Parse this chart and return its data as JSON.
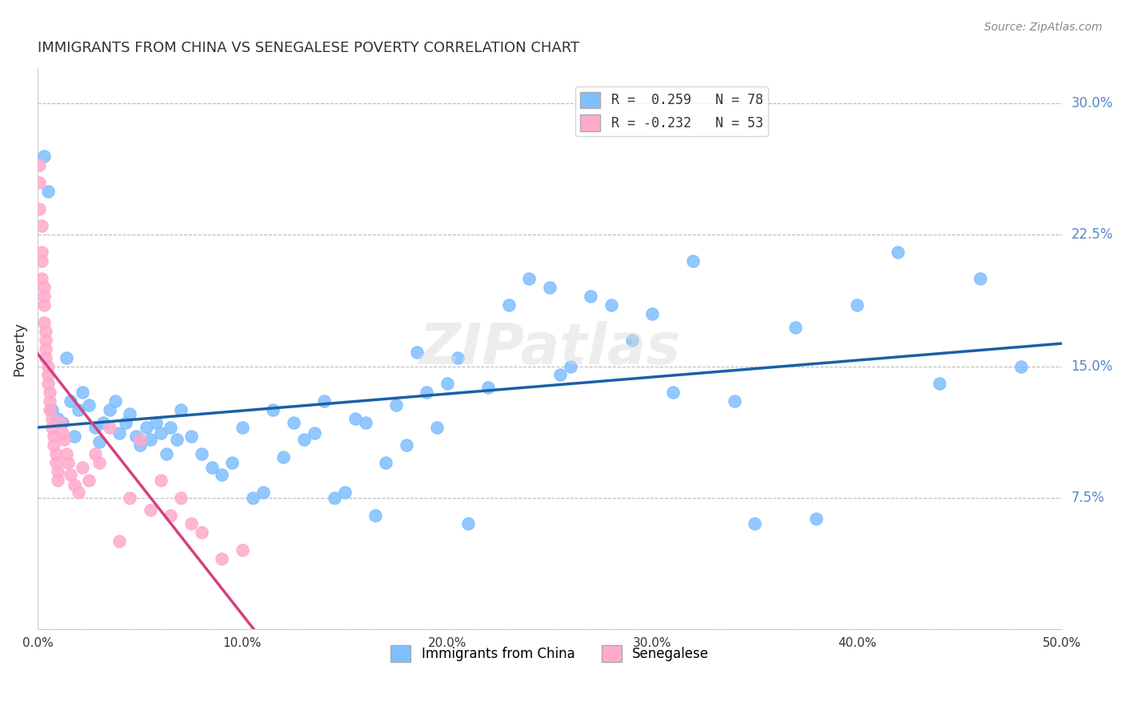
{
  "title": "IMMIGRANTS FROM CHINA VS SENEGALESE POVERTY CORRELATION CHART",
  "source": "Source: ZipAtlas.com",
  "xlabel": "",
  "ylabel": "Poverty",
  "xlim": [
    0.0,
    0.5
  ],
  "ylim": [
    0.0,
    0.32
  ],
  "xticks": [
    0.0,
    0.1,
    0.2,
    0.3,
    0.4,
    0.5
  ],
  "xticklabels": [
    "0.0%",
    "10.0%",
    "20.0%",
    "30.0%",
    "40.0%",
    "50.0%"
  ],
  "yticks": [
    0.0,
    0.075,
    0.15,
    0.225,
    0.3
  ],
  "yticklabels": [
    "",
    "7.5%",
    "15.0%",
    "22.5%",
    "30.0%"
  ],
  "legend_blue_label": "R =  0.259   N = 78",
  "legend_pink_label": "R = -0.232   N = 53",
  "blue_color": "#7fbfff",
  "pink_color": "#ffaacc",
  "blue_line_color": "#1a5fa8",
  "pink_line_color": "#d44080",
  "watermark": "ZIPatlas",
  "blue_scatter_x": [
    0.003,
    0.005,
    0.007,
    0.01,
    0.012,
    0.014,
    0.016,
    0.018,
    0.02,
    0.022,
    0.025,
    0.028,
    0.03,
    0.032,
    0.035,
    0.038,
    0.04,
    0.043,
    0.045,
    0.048,
    0.05,
    0.053,
    0.055,
    0.058,
    0.06,
    0.063,
    0.065,
    0.068,
    0.07,
    0.075,
    0.08,
    0.085,
    0.09,
    0.095,
    0.1,
    0.105,
    0.11,
    0.115,
    0.12,
    0.125,
    0.13,
    0.135,
    0.14,
    0.145,
    0.15,
    0.155,
    0.16,
    0.165,
    0.17,
    0.175,
    0.18,
    0.185,
    0.19,
    0.195,
    0.2,
    0.205,
    0.21,
    0.22,
    0.23,
    0.24,
    0.25,
    0.255,
    0.26,
    0.27,
    0.28,
    0.29,
    0.3,
    0.31,
    0.32,
    0.34,
    0.35,
    0.37,
    0.38,
    0.4,
    0.42,
    0.44,
    0.46,
    0.48
  ],
  "blue_scatter_y": [
    0.27,
    0.25,
    0.125,
    0.12,
    0.118,
    0.155,
    0.13,
    0.11,
    0.125,
    0.135,
    0.128,
    0.115,
    0.107,
    0.118,
    0.125,
    0.13,
    0.112,
    0.118,
    0.123,
    0.11,
    0.105,
    0.115,
    0.108,
    0.118,
    0.112,
    0.1,
    0.115,
    0.108,
    0.125,
    0.11,
    0.1,
    0.092,
    0.088,
    0.095,
    0.115,
    0.075,
    0.078,
    0.125,
    0.098,
    0.118,
    0.108,
    0.112,
    0.13,
    0.075,
    0.078,
    0.12,
    0.118,
    0.065,
    0.095,
    0.128,
    0.105,
    0.158,
    0.135,
    0.115,
    0.14,
    0.155,
    0.06,
    0.138,
    0.185,
    0.2,
    0.195,
    0.145,
    0.15,
    0.19,
    0.185,
    0.165,
    0.18,
    0.135,
    0.21,
    0.13,
    0.06,
    0.172,
    0.063,
    0.185,
    0.215,
    0.14,
    0.2,
    0.15
  ],
  "pink_scatter_x": [
    0.001,
    0.001,
    0.001,
    0.002,
    0.002,
    0.002,
    0.002,
    0.003,
    0.003,
    0.003,
    0.003,
    0.004,
    0.004,
    0.004,
    0.004,
    0.005,
    0.005,
    0.005,
    0.006,
    0.006,
    0.006,
    0.007,
    0.007,
    0.008,
    0.008,
    0.009,
    0.009,
    0.01,
    0.01,
    0.011,
    0.012,
    0.013,
    0.014,
    0.015,
    0.016,
    0.018,
    0.02,
    0.022,
    0.025,
    0.028,
    0.03,
    0.035,
    0.04,
    0.045,
    0.05,
    0.055,
    0.06,
    0.065,
    0.07,
    0.075,
    0.08,
    0.09,
    0.1
  ],
  "pink_scatter_y": [
    0.265,
    0.255,
    0.24,
    0.23,
    0.215,
    0.21,
    0.2,
    0.195,
    0.19,
    0.185,
    0.175,
    0.17,
    0.165,
    0.16,
    0.155,
    0.15,
    0.145,
    0.14,
    0.135,
    0.13,
    0.125,
    0.12,
    0.115,
    0.11,
    0.105,
    0.1,
    0.095,
    0.09,
    0.085,
    0.118,
    0.112,
    0.108,
    0.1,
    0.095,
    0.088,
    0.082,
    0.078,
    0.092,
    0.085,
    0.1,
    0.095,
    0.115,
    0.05,
    0.075,
    0.108,
    0.068,
    0.085,
    0.065,
    0.075,
    0.06,
    0.055,
    0.04,
    0.045
  ]
}
